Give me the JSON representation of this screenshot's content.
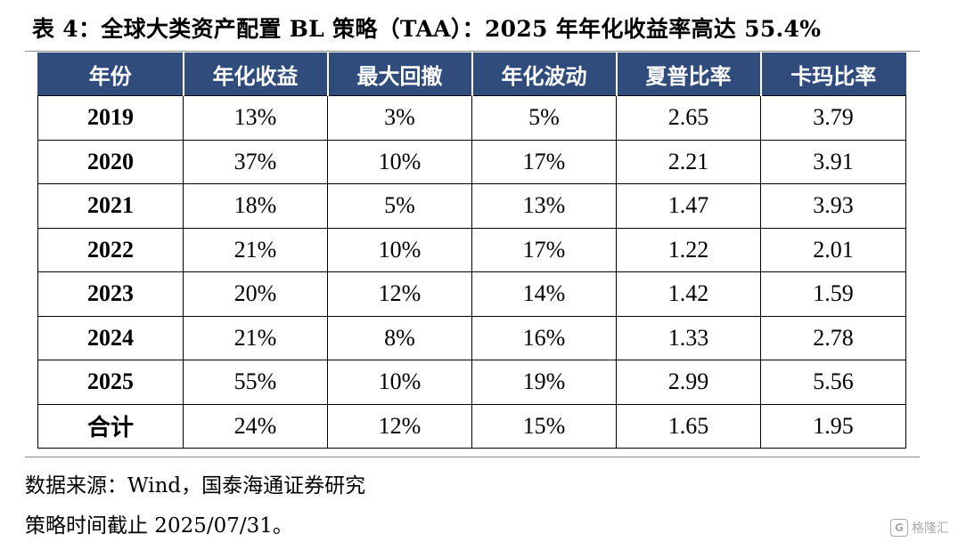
{
  "title": "表 4：全球大类资产配置 BL 策略（TAA）：2025 年年化收益率高达 55.4%",
  "table": {
    "headers": [
      "年份",
      "年化收益",
      "最大回撤",
      "年化波动",
      "夏普比率",
      "卡玛比率"
    ],
    "rows": [
      [
        "2019",
        "13%",
        "3%",
        "5%",
        "2.65",
        "3.79"
      ],
      [
        "2020",
        "37%",
        "10%",
        "17%",
        "2.21",
        "3.91"
      ],
      [
        "2021",
        "18%",
        "5%",
        "13%",
        "1.47",
        "3.93"
      ],
      [
        "2022",
        "21%",
        "10%",
        "17%",
        "1.22",
        "2.01"
      ],
      [
        "2023",
        "20%",
        "12%",
        "14%",
        "1.42",
        "1.59"
      ],
      [
        "2024",
        "21%",
        "8%",
        "16%",
        "1.33",
        "2.78"
      ],
      [
        "2025",
        "55%",
        "10%",
        "19%",
        "2.99",
        "5.56"
      ],
      [
        "合计",
        "24%",
        "12%",
        "15%",
        "1.65",
        "1.95"
      ]
    ]
  },
  "notes": {
    "source": "数据来源：Wind，国泰海通证券研究",
    "cutoff": "策略时间截止 2025/07/31。"
  },
  "watermark": {
    "logo": "G",
    "text": "格隆汇"
  },
  "colors": {
    "header_bg": "#2f4c7d",
    "header_text": "#ffffff"
  }
}
